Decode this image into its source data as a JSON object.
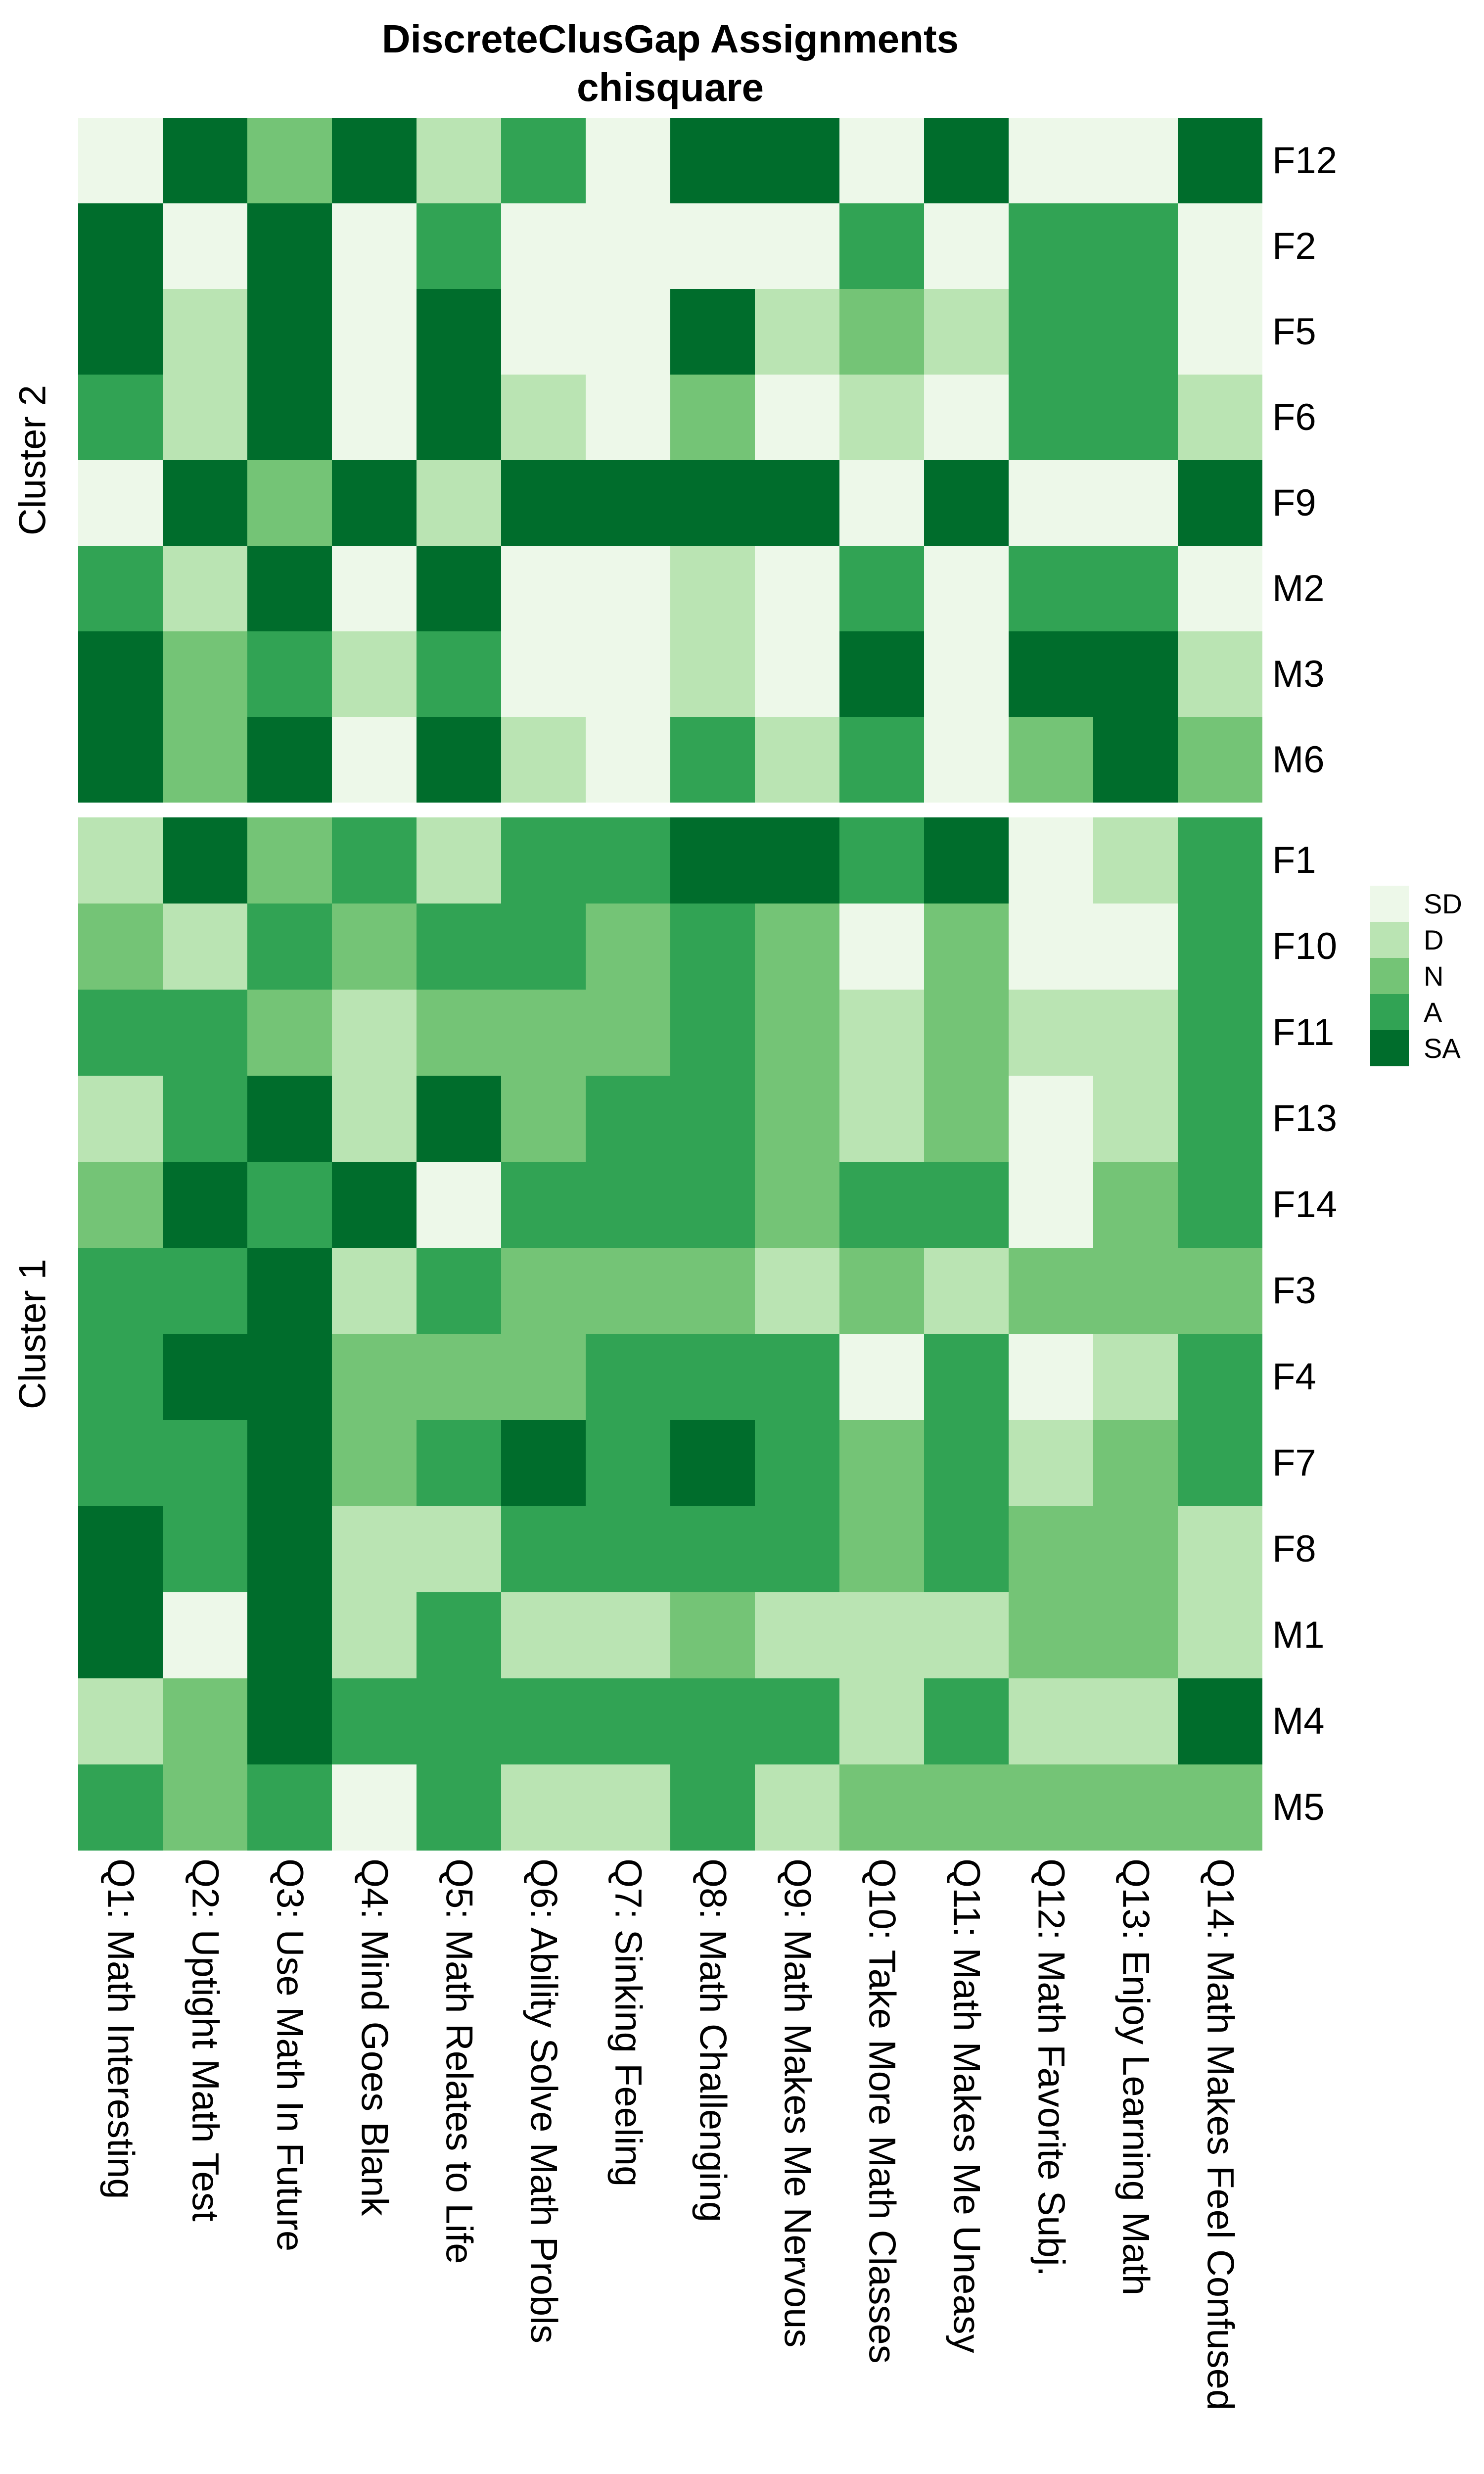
{
  "title": {
    "line1": "DiscreteClusGap Assignments",
    "line2": "chisquare"
  },
  "legend": {
    "position": "right",
    "entries": [
      {
        "label": "SD",
        "color": "#edf8e9"
      },
      {
        "label": "D",
        "color": "#bae4b3"
      },
      {
        "label": "N",
        "color": "#74c476"
      },
      {
        "label": "A",
        "color": "#31a354"
      },
      {
        "label": "SA",
        "color": "#006d2c"
      }
    ]
  },
  "chart_data": {
    "type": "heatmap",
    "title": "DiscreteClusGap Assignments chisquare",
    "value_scale": [
      "SD",
      "D",
      "N",
      "A",
      "SA"
    ],
    "palette": {
      "SD": "#edf8e9",
      "D": "#bae4b3",
      "N": "#74c476",
      "A": "#31a354",
      "SA": "#006d2c"
    },
    "grid": "off",
    "legend_position": "right",
    "columns": [
      "Q1: Math Interesting",
      "Q2: Uptight Math Test",
      "Q3: Use Math In Future",
      "Q4: Mind Goes Blank",
      "Q5: Math Relates to Life",
      "Q6: Ability Solve Math Probls",
      "Q7: Sinking Feeling",
      "Q8: Math Challenging",
      "Q9: Math Makes Me Nervous",
      "Q10: Take More Math Classes",
      "Q11: Math Makes Me Uneasy",
      "Q12: Math Favorite Subj.",
      "Q13: Enjoy Learning Math",
      "Q14: Math Makes Feel Confused"
    ],
    "clusters": [
      {
        "label": "Cluster 2",
        "rows": [
          {
            "label": "F12",
            "values": [
              "SD",
              "SA",
              "N",
              "SA",
              "D",
              "A",
              "SD",
              "SA",
              "SA",
              "SD",
              "SA",
              "SD",
              "SD",
              "SA"
            ]
          },
          {
            "label": "F2",
            "values": [
              "SA",
              "SD",
              "SA",
              "SD",
              "A",
              "SD",
              "SD",
              "SD",
              "SD",
              "A",
              "SD",
              "A",
              "A",
              "SD"
            ]
          },
          {
            "label": "F5",
            "values": [
              "SA",
              "D",
              "SA",
              "SD",
              "SA",
              "SD",
              "SD",
              "SA",
              "D",
              "N",
              "D",
              "A",
              "A",
              "SD"
            ]
          },
          {
            "label": "F6",
            "values": [
              "A",
              "D",
              "SA",
              "SD",
              "SA",
              "D",
              "SD",
              "N",
              "SD",
              "D",
              "SD",
              "A",
              "A",
              "D"
            ]
          },
          {
            "label": "F9",
            "values": [
              "SD",
              "SA",
              "N",
              "SA",
              "D",
              "SA",
              "SA",
              "SA",
              "SA",
              "SD",
              "SA",
              "SD",
              "SD",
              "SA"
            ]
          },
          {
            "label": "M2",
            "values": [
              "A",
              "D",
              "SA",
              "SD",
              "SA",
              "SD",
              "SD",
              "D",
              "SD",
              "A",
              "SD",
              "A",
              "A",
              "SD"
            ]
          },
          {
            "label": "M3",
            "values": [
              "SA",
              "N",
              "A",
              "D",
              "A",
              "SD",
              "SD",
              "D",
              "SD",
              "SA",
              "SD",
              "SA",
              "SA",
              "D"
            ]
          },
          {
            "label": "M6",
            "values": [
              "SA",
              "N",
              "SA",
              "SD",
              "SA",
              "D",
              "SD",
              "A",
              "D",
              "A",
              "SD",
              "N",
              "SA",
              "N"
            ]
          }
        ]
      },
      {
        "label": "Cluster 1",
        "rows": [
          {
            "label": "F1",
            "values": [
              "D",
              "SA",
              "N",
              "A",
              "D",
              "A",
              "A",
              "SA",
              "SA",
              "A",
              "SA",
              "SD",
              "D",
              "A"
            ]
          },
          {
            "label": "F10",
            "values": [
              "N",
              "D",
              "A",
              "N",
              "A",
              "A",
              "N",
              "A",
              "N",
              "SD",
              "N",
              "SD",
              "SD",
              "A"
            ]
          },
          {
            "label": "F11",
            "values": [
              "A",
              "A",
              "N",
              "D",
              "N",
              "N",
              "N",
              "A",
              "N",
              "D",
              "N",
              "D",
              "D",
              "A"
            ]
          },
          {
            "label": "F13",
            "values": [
              "D",
              "A",
              "SA",
              "D",
              "SA",
              "N",
              "A",
              "A",
              "N",
              "D",
              "N",
              "SD",
              "D",
              "A"
            ]
          },
          {
            "label": "F14",
            "values": [
              "N",
              "SA",
              "A",
              "SA",
              "SD",
              "A",
              "A",
              "A",
              "N",
              "A",
              "A",
              "SD",
              "N",
              "A"
            ]
          },
          {
            "label": "F3",
            "values": [
              "A",
              "A",
              "SA",
              "D",
              "A",
              "N",
              "N",
              "N",
              "D",
              "N",
              "D",
              "N",
              "N",
              "N"
            ]
          },
          {
            "label": "F4",
            "values": [
              "A",
              "SA",
              "SA",
              "N",
              "N",
              "N",
              "A",
              "A",
              "A",
              "SD",
              "A",
              "SD",
              "D",
              "A"
            ]
          },
          {
            "label": "F7",
            "values": [
              "A",
              "A",
              "SA",
              "N",
              "A",
              "SA",
              "A",
              "SA",
              "A",
              "N",
              "A",
              "D",
              "N",
              "A"
            ]
          },
          {
            "label": "F8",
            "values": [
              "SA",
              "A",
              "SA",
              "D",
              "D",
              "A",
              "A",
              "A",
              "A",
              "N",
              "A",
              "N",
              "N",
              "D"
            ]
          },
          {
            "label": "M1",
            "values": [
              "SA",
              "SD",
              "SA",
              "D",
              "A",
              "D",
              "D",
              "N",
              "D",
              "D",
              "D",
              "N",
              "N",
              "D"
            ]
          },
          {
            "label": "M4",
            "values": [
              "D",
              "N",
              "SA",
              "A",
              "A",
              "A",
              "A",
              "A",
              "A",
              "D",
              "A",
              "D",
              "D",
              "SA"
            ]
          },
          {
            "label": "M5",
            "values": [
              "A",
              "N",
              "A",
              "SD",
              "A",
              "D",
              "D",
              "A",
              "D",
              "N",
              "N",
              "N",
              "N",
              "N"
            ]
          }
        ]
      }
    ]
  }
}
